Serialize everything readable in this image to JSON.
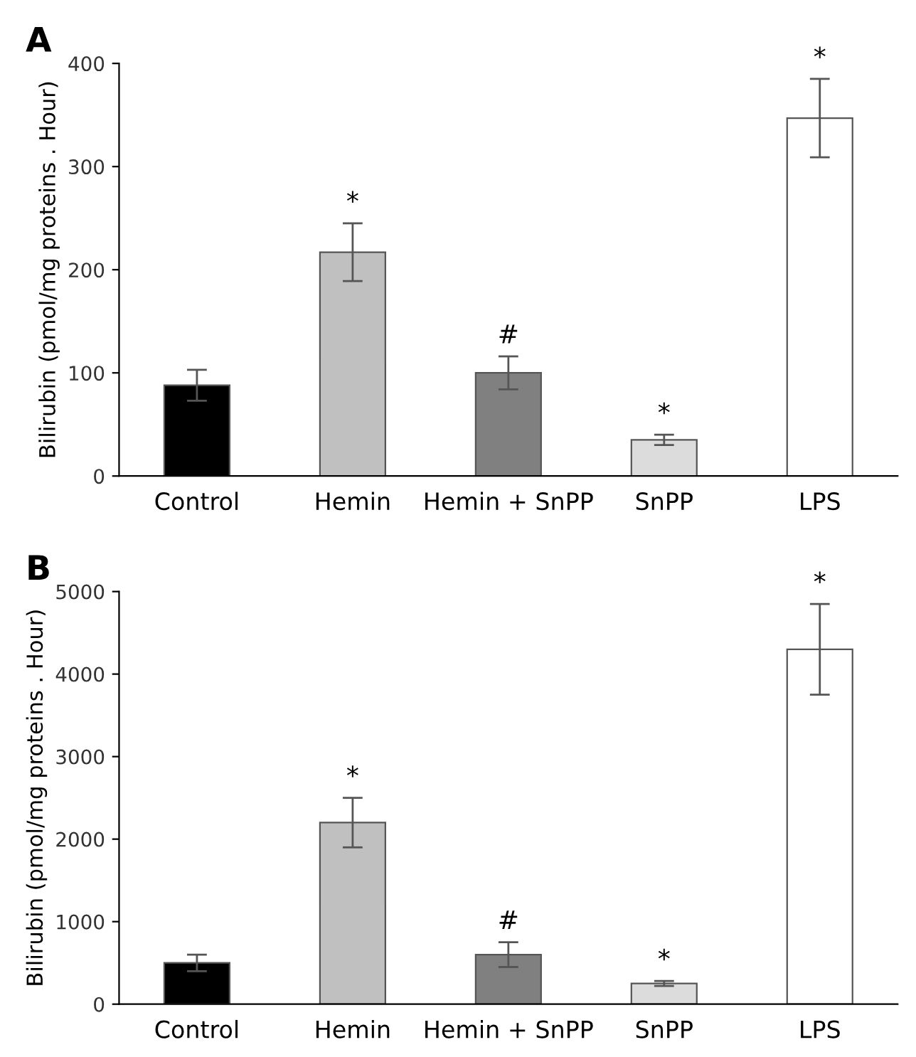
{
  "chart_data": [
    {
      "type": "bar",
      "title": "A",
      "ylabel": "Bilirubin (pmol/mg proteins . Hour)",
      "categories": [
        "Control",
        "Hemin",
        "Hemin + SnPP",
        "SnPP",
        "LPS"
      ],
      "values": [
        88,
        217,
        100,
        35,
        347
      ],
      "errors": [
        15,
        28,
        16,
        5,
        38
      ],
      "colors": [
        "#000000",
        "#c0c0c0",
        "#808080",
        "#dcdcdc",
        "#ffffff"
      ],
      "ylim": [
        0,
        400
      ],
      "yticks": [
        0,
        100,
        200,
        300,
        400
      ],
      "annotations": [
        {
          "text": "*",
          "x": "Hemin",
          "y": 217
        },
        {
          "text": "#",
          "x": "Hemin + SnPP",
          "y": 100
        },
        {
          "text": "*",
          "x": "SnPP",
          "y": 35
        },
        {
          "text": "*",
          "x": "LPS",
          "y": 347
        }
      ]
    },
    {
      "type": "bar",
      "title": "B",
      "ylabel": "Bilirubin (pmol/mg proteins . Hour)",
      "categories": [
        "Control",
        "Hemin",
        "Hemin + SnPP",
        "SnPP",
        "LPS"
      ],
      "values": [
        500,
        2200,
        600,
        250,
        4300
      ],
      "errors": [
        100,
        300,
        150,
        30,
        550
      ],
      "colors": [
        "#000000",
        "#c0c0c0",
        "#808080",
        "#dcdcdc",
        "#ffffff"
      ],
      "ylim": [
        0,
        5000
      ],
      "yticks": [
        0,
        1000,
        2000,
        3000,
        4000,
        5000
      ],
      "annotations": [
        {
          "text": "*",
          "x": "Hemin",
          "y": 2200
        },
        {
          "text": "#",
          "x": "Hemin + SnPP",
          "y": 600
        },
        {
          "text": "*",
          "x": "SnPP",
          "y": 250
        },
        {
          "text": "*",
          "x": "LPS",
          "y": 4300
        }
      ]
    }
  ]
}
